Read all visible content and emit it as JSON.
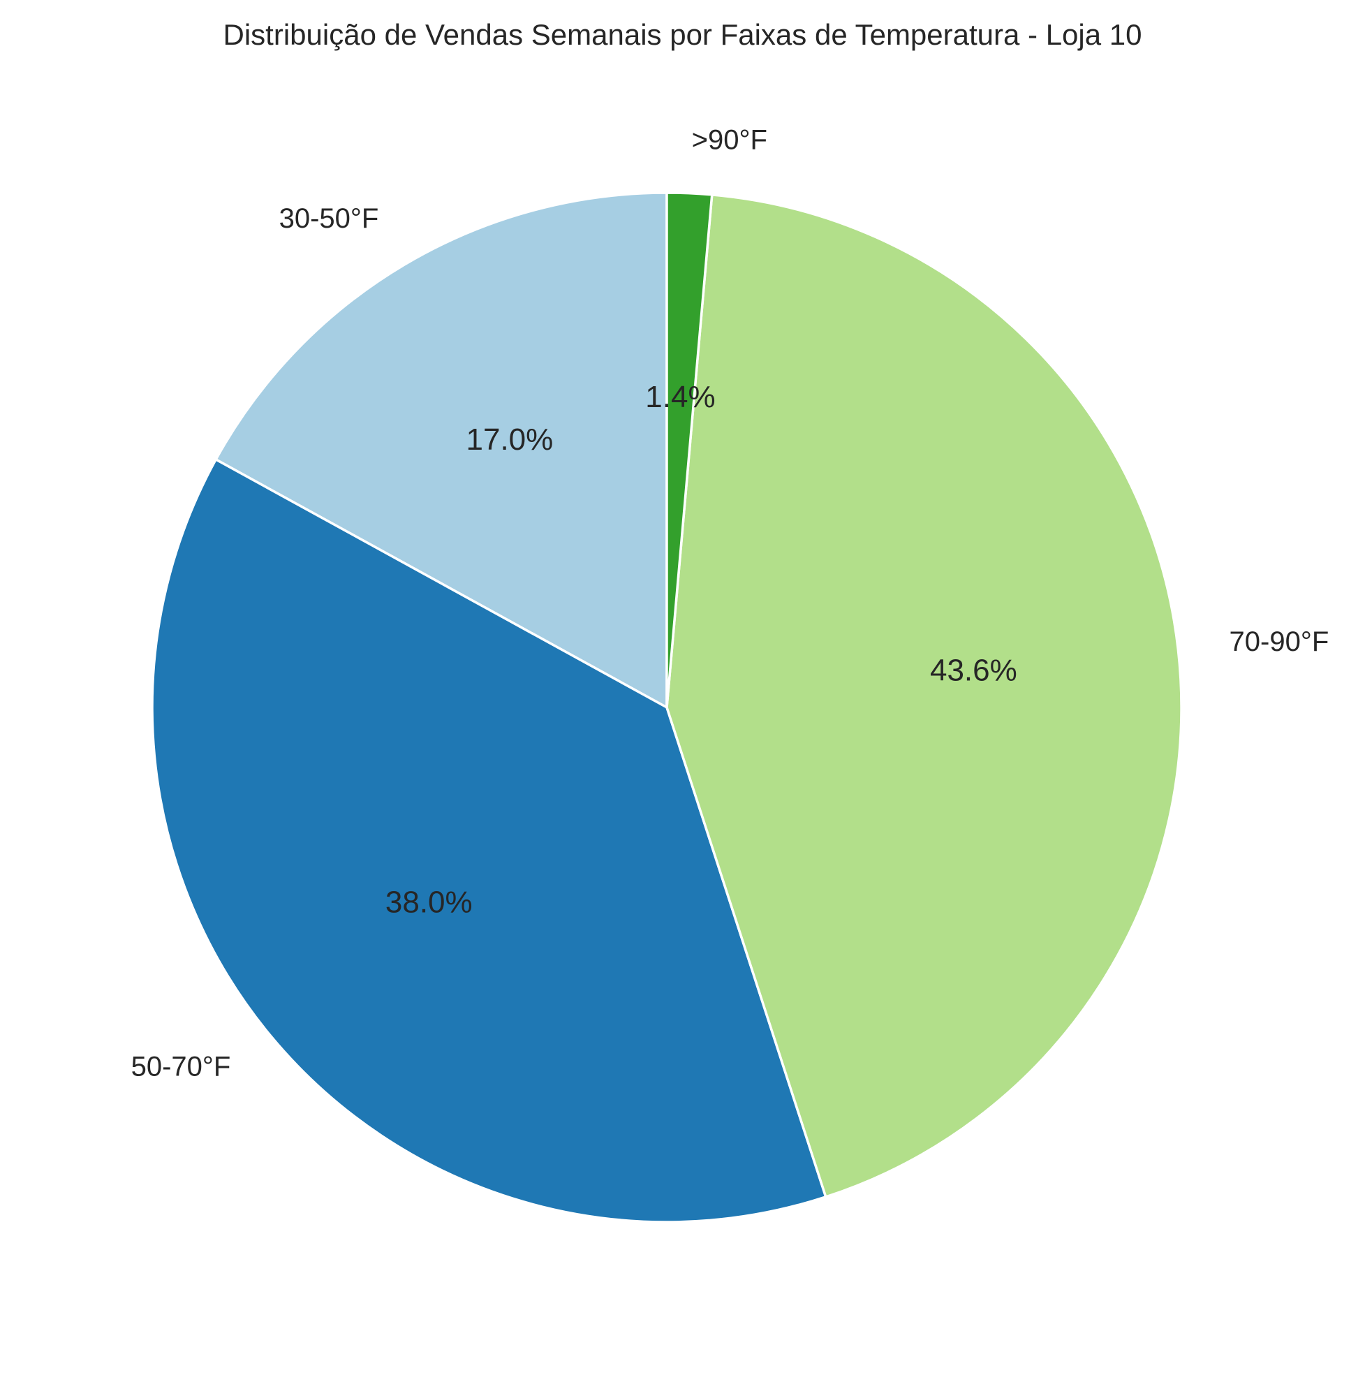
{
  "chart_data": {
    "type": "pie",
    "title": "Distribuição de Vendas Semanais por Faixas de Temperatura - Loja 10",
    "start_angle_deg": 90,
    "direction": "counterclockwise",
    "slices": [
      {
        "label": "30-50°F",
        "value": 17.0,
        "pct_label": "17.0%",
        "color": "#a6cee3"
      },
      {
        "label": "50-70°F",
        "value": 38.0,
        "pct_label": "38.0%",
        "color": "#1f78b4"
      },
      {
        "label": "70-90°F",
        "value": 43.6,
        "pct_label": "43.6%",
        "color": "#b2df8a"
      },
      {
        "label": ">90°F",
        "value": 1.4,
        "pct_label": "1.4%",
        "color": "#33a02c"
      }
    ]
  }
}
